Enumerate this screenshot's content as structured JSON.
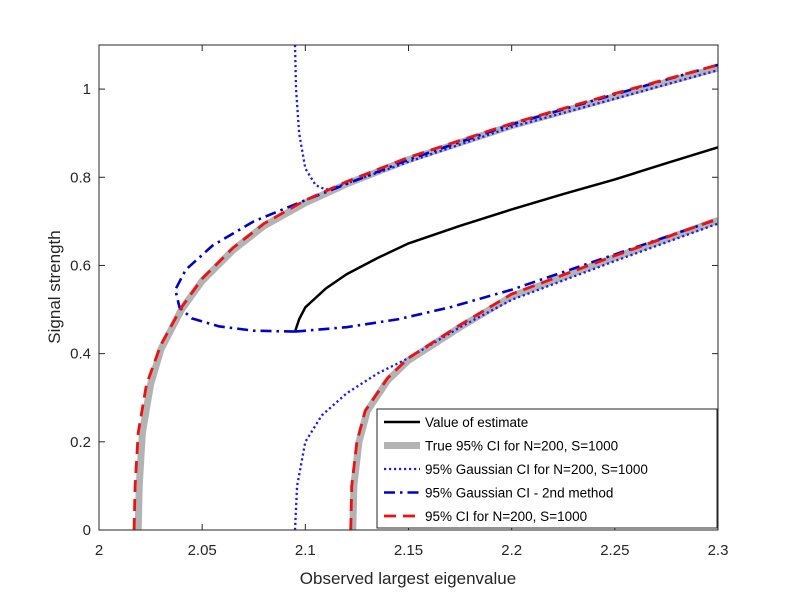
{
  "chart_data": {
    "type": "line",
    "title": "",
    "xlabel": "Observed largest eigenvalue",
    "ylabel": "Signal strength",
    "xlim": [
      2,
      2.3
    ],
    "ylim": [
      0,
      1.1
    ],
    "xticks": [
      2,
      2.05,
      2.1,
      2.15,
      2.2,
      2.25,
      2.3
    ],
    "xtick_labels": [
      "2",
      "2.05",
      "2.1",
      "2.15",
      "2.2",
      "2.25",
      "2.3"
    ],
    "yticks": [
      0,
      0.2,
      0.4,
      0.6,
      0.8,
      1
    ],
    "ytick_labels": [
      "0",
      "0.2",
      "0.4",
      "0.6",
      "0.8",
      "1"
    ],
    "grid": false,
    "legend_position": "bottom-right",
    "series": [
      {
        "name": "Value of estimate",
        "color": "#000000",
        "style": "solid",
        "segments": [
          [
            [
              2.095,
              0.45
            ],
            [
              2.097,
              0.478
            ],
            [
              2.1,
              0.505
            ],
            [
              2.11,
              0.548
            ],
            [
              2.12,
              0.58
            ],
            [
              2.135,
              0.617
            ],
            [
              2.15,
              0.65
            ],
            [
              2.175,
              0.69
            ],
            [
              2.2,
              0.727
            ],
            [
              2.225,
              0.762
            ],
            [
              2.25,
              0.795
            ],
            [
              2.275,
              0.832
            ],
            [
              2.3,
              0.868
            ]
          ]
        ]
      },
      {
        "name": "True 95% CI for N=200, S=1000",
        "color": "#b3b3b3",
        "style": "thick",
        "segments": [
          [
            [
              2.019,
              0.0
            ],
            [
              2.0195,
              0.1
            ],
            [
              2.021,
              0.22
            ],
            [
              2.025,
              0.33
            ],
            [
              2.03,
              0.41
            ],
            [
              2.04,
              0.5
            ],
            [
              2.05,
              0.565
            ],
            [
              2.065,
              0.635
            ],
            [
              2.08,
              0.69
            ],
            [
              2.1,
              0.742
            ],
            [
              2.12,
              0.785
            ],
            [
              2.15,
              0.84
            ],
            [
              2.2,
              0.917
            ],
            [
              2.25,
              0.983
            ],
            [
              2.3,
              1.048
            ]
          ],
          [
            [
              2.123,
              0.0
            ],
            [
              2.1235,
              0.1
            ],
            [
              2.126,
              0.2
            ],
            [
              2.13,
              0.27
            ],
            [
              2.14,
              0.34
            ],
            [
              2.15,
              0.385
            ],
            [
              2.175,
              0.46
            ],
            [
              2.2,
              0.53
            ],
            [
              2.25,
              0.618
            ],
            [
              2.3,
              0.702
            ]
          ]
        ]
      },
      {
        "name": "95% Gaussian CI for N=200, S=1000",
        "color": "#1a1aff",
        "style": "dotted",
        "segments": [
          [
            [
              2.095,
              1.1
            ],
            [
              2.0955,
              1.0
            ],
            [
              2.097,
              0.9
            ],
            [
              2.1,
              0.82
            ],
            [
              2.105,
              0.782
            ],
            [
              2.11,
              0.772
            ],
            [
              2.115,
              0.778
            ],
            [
              2.13,
              0.802
            ],
            [
              2.15,
              0.835
            ],
            [
              2.2,
              0.914
            ],
            [
              2.25,
              0.978
            ],
            [
              2.3,
              1.043
            ]
          ],
          [
            [
              2.095,
              0.0
            ],
            [
              2.096,
              0.1
            ],
            [
              2.1,
              0.2
            ],
            [
              2.108,
              0.26
            ],
            [
              2.12,
              0.31
            ],
            [
              2.135,
              0.355
            ],
            [
              2.15,
              0.39
            ],
            [
              2.175,
              0.46
            ],
            [
              2.2,
              0.522
            ],
            [
              2.25,
              0.61
            ],
            [
              2.3,
              0.695
            ]
          ]
        ]
      },
      {
        "name": "95% Gaussian CI - 2nd method",
        "color": "#0000cc",
        "style": "dashdot",
        "segments": [
          [
            [
              2.095,
              0.45
            ],
            [
              2.075,
              0.452
            ],
            [
              2.058,
              0.462
            ],
            [
              2.045,
              0.48
            ],
            [
              2.039,
              0.505
            ],
            [
              2.037,
              0.545
            ],
            [
              2.042,
              0.59
            ],
            [
              2.055,
              0.645
            ],
            [
              2.075,
              0.7
            ],
            [
              2.1,
              0.748
            ],
            [
              2.15,
              0.84
            ],
            [
              2.2,
              0.92
            ],
            [
              2.25,
              0.988
            ],
            [
              2.3,
              1.055
            ]
          ],
          [
            [
              2.095,
              0.45
            ],
            [
              2.12,
              0.46
            ],
            [
              2.145,
              0.478
            ],
            [
              2.17,
              0.505
            ],
            [
              2.2,
              0.545
            ],
            [
              2.25,
              0.625
            ],
            [
              2.3,
              0.705
            ]
          ]
        ]
      },
      {
        "name": "95% CI for N=200, S=1000",
        "color": "#ee1111",
        "style": "dashed",
        "segments": [
          [
            [
              2.017,
              0.0
            ],
            [
              2.0175,
              0.1
            ],
            [
              2.019,
              0.22
            ],
            [
              2.023,
              0.33
            ],
            [
              2.03,
              0.42
            ],
            [
              2.04,
              0.505
            ],
            [
              2.05,
              0.57
            ],
            [
              2.065,
              0.64
            ],
            [
              2.08,
              0.695
            ],
            [
              2.1,
              0.748
            ],
            [
              2.12,
              0.79
            ],
            [
              2.15,
              0.845
            ],
            [
              2.2,
              0.922
            ],
            [
              2.25,
              0.99
            ],
            [
              2.3,
              1.055
            ]
          ],
          [
            [
              2.122,
              0.0
            ],
            [
              2.1225,
              0.1
            ],
            [
              2.125,
              0.2
            ],
            [
              2.129,
              0.27
            ],
            [
              2.14,
              0.345
            ],
            [
              2.15,
              0.39
            ],
            [
              2.175,
              0.465
            ],
            [
              2.2,
              0.535
            ],
            [
              2.25,
              0.622
            ],
            [
              2.3,
              0.706
            ]
          ]
        ]
      }
    ]
  }
}
